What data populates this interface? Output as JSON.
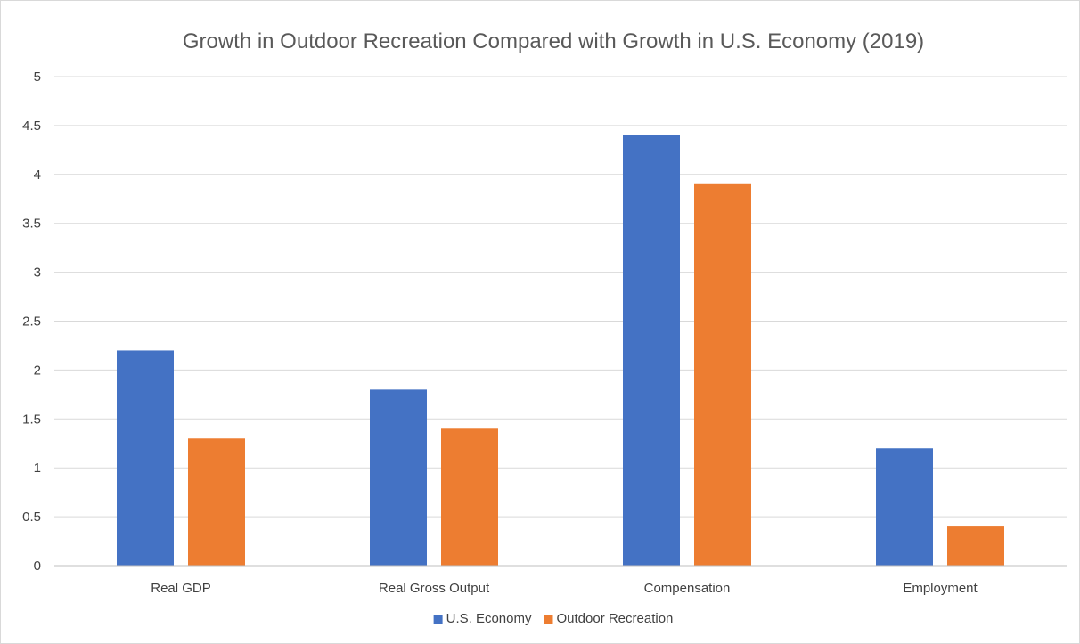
{
  "chart_data": {
    "type": "bar",
    "title": "Growth in Outdoor Recreation Compared with Growth in U.S. Economy (2019)",
    "categories": [
      "Real GDP",
      "Real Gross Output",
      "Compensation",
      "Employment"
    ],
    "series": [
      {
        "name": "U.S. Economy",
        "color": "#4472c4",
        "values": [
          2.2,
          1.8,
          4.4,
          1.2
        ]
      },
      {
        "name": "Outdoor Recreation",
        "color": "#ed7d31",
        "values": [
          1.3,
          1.4,
          3.9,
          0.4
        ]
      }
    ],
    "xlabel": "",
    "ylabel": "",
    "ylim": [
      0,
      5
    ],
    "yticks": [
      "0",
      "0.5",
      "1",
      "1.5",
      "2",
      "2.5",
      "3",
      "3.5",
      "4",
      "4.5",
      "5"
    ],
    "grid": true,
    "legend_position": "bottom"
  }
}
